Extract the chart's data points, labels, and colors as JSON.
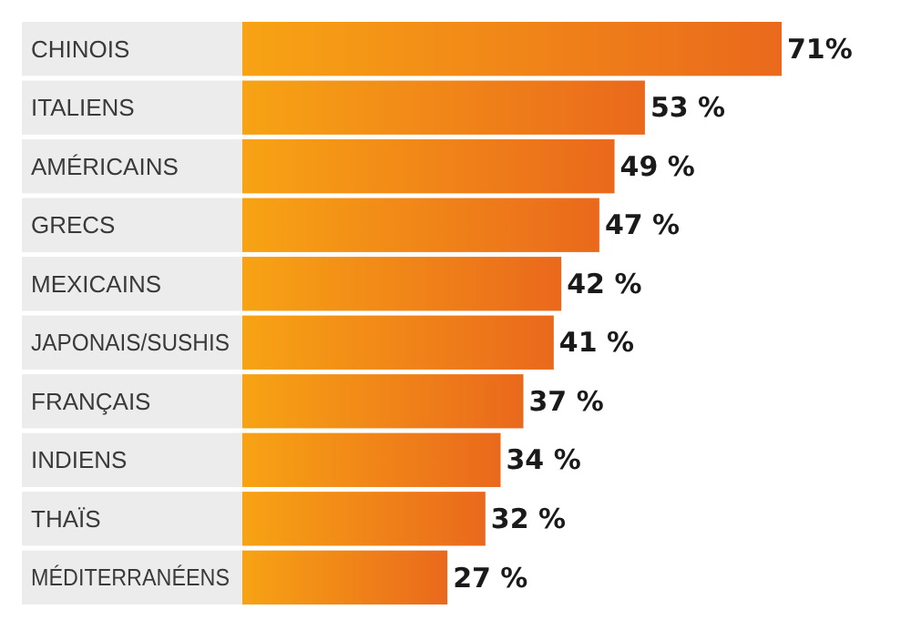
{
  "chart_data": {
    "type": "bar",
    "orientation": "horizontal",
    "categories": [
      "CHINOIS",
      "ITALIENS",
      "AMÉRICAINS",
      "GRECS",
      "MEXICAINS",
      "JAPONAIS/SUSHIS",
      "FRANÇAIS",
      "INDIENS",
      "THAÏS",
      "MÉDITERRANÉENS"
    ],
    "values": [
      71,
      53,
      49,
      47,
      42,
      41,
      37,
      34,
      32,
      27
    ],
    "value_labels": [
      "71%",
      "53 %",
      "49 %",
      "47 %",
      "42 %",
      "41 %",
      "37 %",
      "34 %",
      "32 %",
      "27 %"
    ],
    "color": "#f28a1e"
  }
}
